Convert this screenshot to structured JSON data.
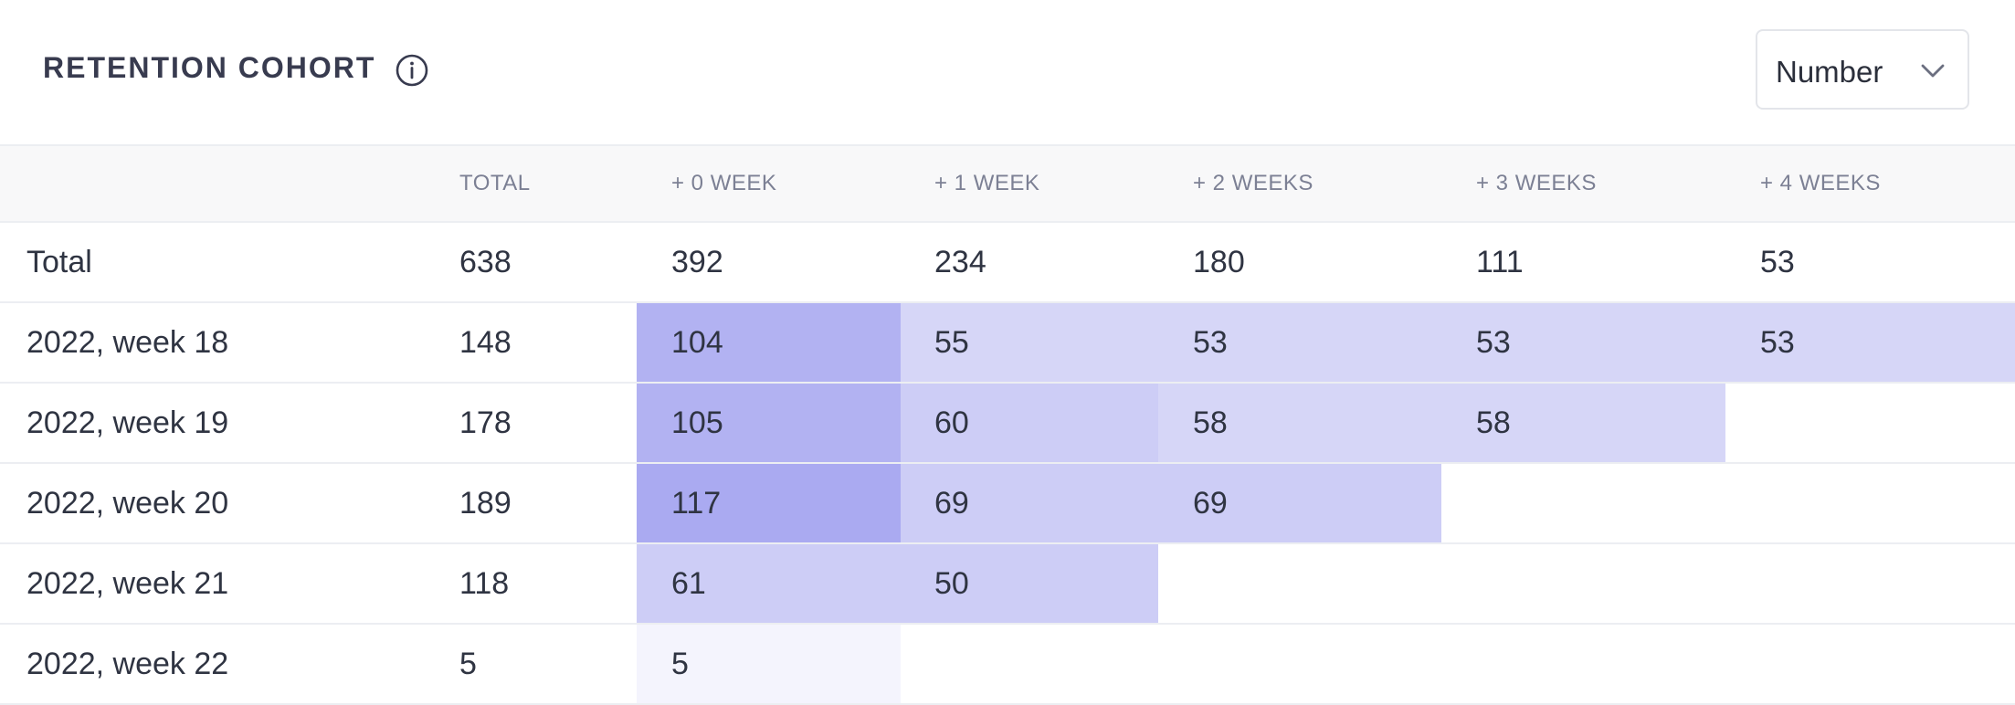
{
  "header": {
    "title": "RETENTION COHORT",
    "info_icon": "info-circle-icon",
    "dropdown": {
      "selected": "Number",
      "icon": "chevron-down-icon"
    }
  },
  "table": {
    "columns": [
      "",
      "TOTAL",
      "+ 0 WEEK",
      "+ 1 WEEK",
      "+ 2 WEEKS",
      "+ 3 WEEKS",
      "+ 4 WEEKS"
    ],
    "total_row": {
      "label": "Total",
      "total": "638",
      "cells": [
        "392",
        "234",
        "180",
        "111",
        "53"
      ]
    },
    "rows": [
      {
        "label": "2022, week 18",
        "total": "148",
        "cells": [
          "104",
          "55",
          "53",
          "53",
          "53"
        ]
      },
      {
        "label": "2022, week 19",
        "total": "178",
        "cells": [
          "105",
          "60",
          "58",
          "58",
          ""
        ]
      },
      {
        "label": "2022, week 20",
        "total": "189",
        "cells": [
          "117",
          "69",
          "69",
          "",
          ""
        ]
      },
      {
        "label": "2022, week 21",
        "total": "118",
        "cells": [
          "61",
          "50",
          "",
          "",
          ""
        ]
      },
      {
        "label": "2022, week 22",
        "total": "5",
        "cells": [
          "5",
          "",
          "",
          "",
          ""
        ]
      }
    ]
  },
  "colors": {
    "heat_lightest": "#f4f4fd",
    "heat_light": "#d6d6f7",
    "heat_mid": "#cdcdf6",
    "heat_strong": "#b2b2f2",
    "heat_strongest": "#aaaaf1"
  }
}
